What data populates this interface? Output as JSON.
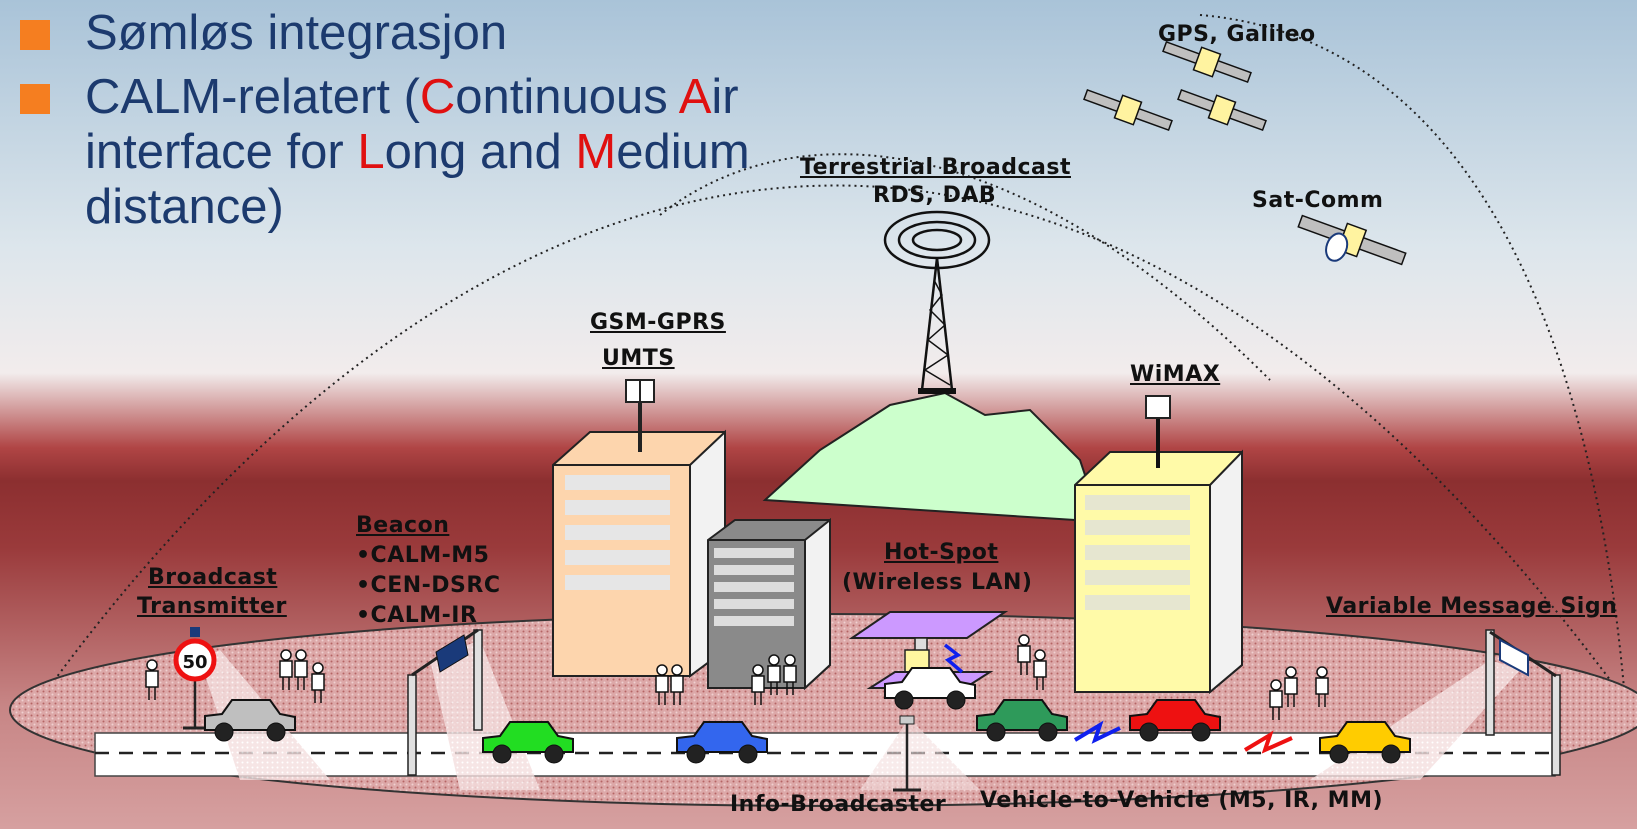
{
  "bullets": [
    {
      "text": "Sømløs integrasjon"
    },
    {
      "line1_pre": "CALM-relatert (",
      "line1_c": "C",
      "line1_mid": "ontinuous ",
      "line1_a": "A",
      "line1_post": "ir",
      "line2_pre": "interface for ",
      "line2_l": "L",
      "line2_mid": "ong and ",
      "line2_m": "M",
      "line2_post": "edium",
      "line3": "distance)"
    }
  ],
  "labels": {
    "gps": "GPS, Galileo",
    "terrestrial_line1": "Terrestrial Broadcast",
    "terrestrial_line2": "RDS, DAB",
    "satcomm": "Sat-Comm",
    "gsm_line1": "GSM-GPRS",
    "gsm_line2": "UMTS",
    "wimax": "WiMAX",
    "beacon_title": "Beacon",
    "beacon_items": [
      "•CALM-M5",
      "•CEN-DSRC",
      "•CALM-IR"
    ],
    "hotspot_line1": "Hot-Spot",
    "hotspot_line2": "(Wireless LAN)",
    "broadcast_line1": "Broadcast",
    "broadcast_line2": "Transmitter",
    "vms": "Variable Message Sign",
    "info_broadcaster": "Info-Broadcaster",
    "v2v": "Vehicle-to-Vehicle (M5, IR, MM)",
    "speed_sign": "50"
  },
  "colors": {
    "title_text": "#1c3a6e",
    "bullet_square": "#f57e20",
    "highlight_letter": "#e01010",
    "building_left": "#fdd5ad",
    "building_mid": "#808080",
    "building_right": "#fffaa8",
    "hill": "#ccffcc",
    "hotspot_roof": "#cc99ff"
  },
  "vehicles": [
    {
      "name": "grey-car",
      "color": "#bfbfbf"
    },
    {
      "name": "green-car",
      "color": "#22dd22"
    },
    {
      "name": "blue-car",
      "color": "#3366ee"
    },
    {
      "name": "white-car",
      "color": "#ffffff"
    },
    {
      "name": "dark-green-car",
      "color": "#2e9a5a"
    },
    {
      "name": "red-car",
      "color": "#ee1111"
    },
    {
      "name": "yellow-car",
      "color": "#ffcc00"
    }
  ]
}
